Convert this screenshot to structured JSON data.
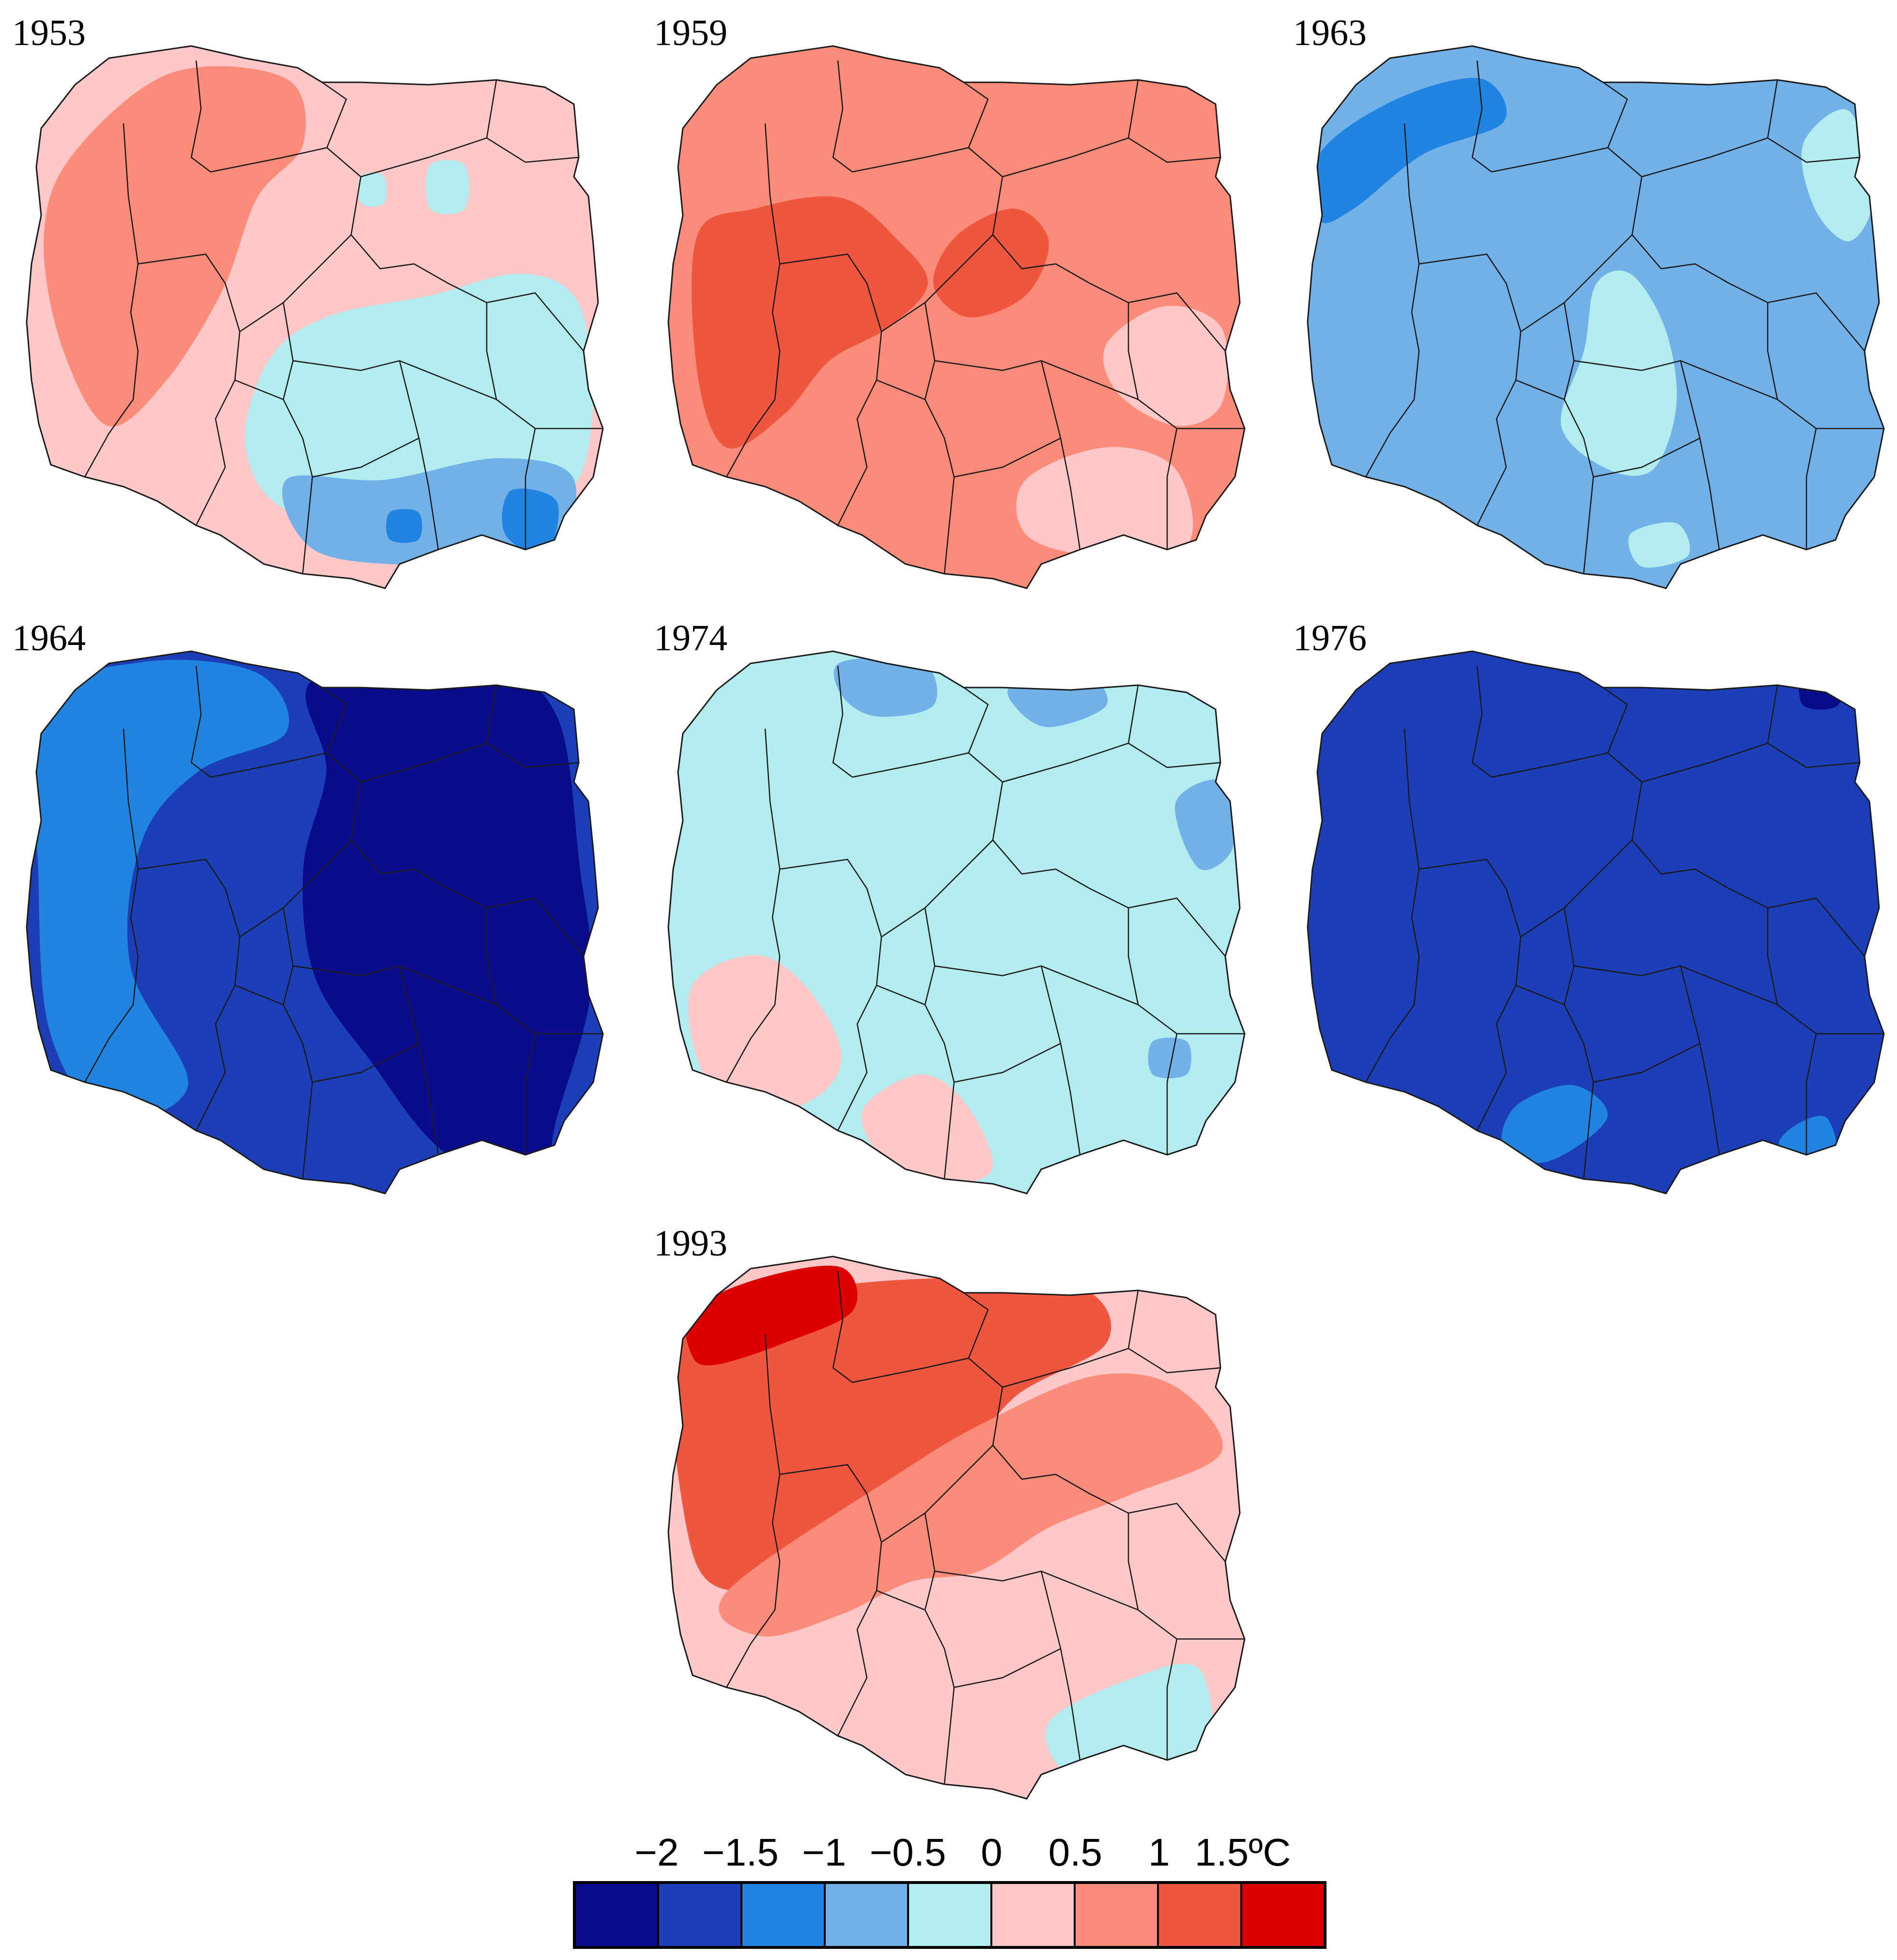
{
  "colors": {
    "m2": "#0a0a8c",
    "m15": "#1c3fb8",
    "m1": "#2184e0",
    "m05": "#72b1e8",
    "z": "#b3ecef",
    "p05": "#fdc8c7",
    "p1": "#fb8c79",
    "p15": "#ef5640",
    "p2": "#dc0000"
  },
  "panels": [
    {
      "year": "1953",
      "base": "p05",
      "blobs": [
        {
          "color": "p1",
          "pts": [
            [
              0.08,
              0.2
            ],
            [
              0.25,
              0.05
            ],
            [
              0.45,
              0.06
            ],
            [
              0.48,
              0.18
            ],
            [
              0.4,
              0.28
            ],
            [
              0.34,
              0.45
            ],
            [
              0.24,
              0.62
            ],
            [
              0.14,
              0.7
            ],
            [
              0.06,
              0.55
            ],
            [
              0.03,
              0.35
            ]
          ]
        },
        {
          "color": "z",
          "pts": [
            [
              0.42,
              0.58
            ],
            [
              0.52,
              0.5
            ],
            [
              0.7,
              0.46
            ],
            [
              0.86,
              0.42
            ],
            [
              0.96,
              0.48
            ],
            [
              0.98,
              0.7
            ],
            [
              0.92,
              0.84
            ],
            [
              0.7,
              0.88
            ],
            [
              0.46,
              0.86
            ],
            [
              0.38,
              0.74
            ]
          ]
        },
        {
          "color": "m05",
          "pts": [
            [
              0.45,
              0.8
            ],
            [
              0.62,
              0.8
            ],
            [
              0.82,
              0.76
            ],
            [
              0.95,
              0.8
            ],
            [
              0.9,
              0.97
            ],
            [
              0.7,
              0.96
            ],
            [
              0.5,
              0.93
            ]
          ]
        },
        {
          "color": "m1",
          "pts": [
            [
              0.84,
              0.82
            ],
            [
              0.92,
              0.84
            ],
            [
              0.9,
              0.94
            ],
            [
              0.83,
              0.9
            ]
          ]
        },
        {
          "color": "m1",
          "pts": [
            [
              0.63,
              0.86
            ],
            [
              0.68,
              0.86
            ],
            [
              0.68,
              0.91
            ],
            [
              0.63,
              0.91
            ]
          ]
        },
        {
          "color": "z",
          "pts": [
            [
              0.7,
              0.22
            ],
            [
              0.76,
              0.22
            ],
            [
              0.76,
              0.3
            ],
            [
              0.7,
              0.3
            ]
          ]
        },
        {
          "color": "z",
          "pts": [
            [
              0.58,
              0.24
            ],
            [
              0.62,
              0.24
            ],
            [
              0.62,
              0.29
            ],
            [
              0.58,
              0.29
            ]
          ]
        }
      ]
    },
    {
      "year": "1959",
      "base": "p1",
      "blobs": [
        {
          "color": "p15",
          "pts": [
            [
              0.05,
              0.35
            ],
            [
              0.15,
              0.3
            ],
            [
              0.3,
              0.28
            ],
            [
              0.4,
              0.36
            ],
            [
              0.45,
              0.44
            ],
            [
              0.38,
              0.52
            ],
            [
              0.28,
              0.58
            ],
            [
              0.2,
              0.68
            ],
            [
              0.1,
              0.74
            ],
            [
              0.05,
              0.6
            ]
          ]
        },
        {
          "color": "p15",
          "pts": [
            [
              0.5,
              0.35
            ],
            [
              0.6,
              0.3
            ],
            [
              0.66,
              0.36
            ],
            [
              0.62,
              0.46
            ],
            [
              0.52,
              0.5
            ],
            [
              0.46,
              0.44
            ]
          ]
        },
        {
          "color": "p05",
          "pts": [
            [
              0.76,
              0.55
            ],
            [
              0.86,
              0.48
            ],
            [
              0.96,
              0.52
            ],
            [
              0.96,
              0.66
            ],
            [
              0.88,
              0.7
            ],
            [
              0.78,
              0.64
            ]
          ]
        },
        {
          "color": "p05",
          "pts": [
            [
              0.62,
              0.8
            ],
            [
              0.76,
              0.74
            ],
            [
              0.88,
              0.78
            ],
            [
              0.9,
              0.92
            ],
            [
              0.74,
              0.94
            ],
            [
              0.62,
              0.9
            ]
          ]
        }
      ]
    },
    {
      "year": "1963",
      "base": "m05",
      "blobs": [
        {
          "color": "m1",
          "pts": [
            [
              0.02,
              0.2
            ],
            [
              0.15,
              0.1
            ],
            [
              0.3,
              0.06
            ],
            [
              0.34,
              0.14
            ],
            [
              0.2,
              0.2
            ],
            [
              0.08,
              0.3
            ],
            [
              0.02,
              0.32
            ]
          ]
        },
        {
          "color": "z",
          "pts": [
            [
              0.5,
              0.44
            ],
            [
              0.56,
              0.42
            ],
            [
              0.62,
              0.52
            ],
            [
              0.64,
              0.66
            ],
            [
              0.6,
              0.78
            ],
            [
              0.52,
              0.78
            ],
            [
              0.44,
              0.7
            ],
            [
              0.48,
              0.56
            ]
          ]
        },
        {
          "color": "z",
          "pts": [
            [
              0.86,
              0.18
            ],
            [
              0.94,
              0.12
            ],
            [
              0.98,
              0.28
            ],
            [
              0.94,
              0.36
            ],
            [
              0.88,
              0.3
            ]
          ]
        },
        {
          "color": "z",
          "pts": [
            [
              0.56,
              0.9
            ],
            [
              0.64,
              0.88
            ],
            [
              0.66,
              0.94
            ],
            [
              0.58,
              0.96
            ]
          ]
        }
      ]
    },
    {
      "year": "1964",
      "base": "m15",
      "blobs": [
        {
          "color": "m1",
          "pts": [
            [
              0.02,
              0.1
            ],
            [
              0.2,
              0.02
            ],
            [
              0.4,
              0.04
            ],
            [
              0.45,
              0.15
            ],
            [
              0.3,
              0.22
            ],
            [
              0.2,
              0.35
            ],
            [
              0.18,
              0.58
            ],
            [
              0.28,
              0.8
            ],
            [
              0.14,
              0.86
            ],
            [
              0.04,
              0.7
            ],
            [
              0.02,
              0.4
            ]
          ]
        },
        {
          "color": "m2",
          "pts": [
            [
              0.5,
              0.05
            ],
            [
              0.8,
              0.04
            ],
            [
              0.92,
              0.12
            ],
            [
              0.96,
              0.4
            ],
            [
              0.98,
              0.62
            ],
            [
              0.92,
              0.86
            ],
            [
              0.88,
              1.0
            ],
            [
              0.72,
              0.92
            ],
            [
              0.6,
              0.76
            ],
            [
              0.5,
              0.6
            ],
            [
              0.48,
              0.4
            ],
            [
              0.52,
              0.22
            ]
          ]
        }
      ]
    },
    {
      "year": "1974",
      "base": "z",
      "blobs": [
        {
          "color": "p05",
          "pts": [
            [
              0.04,
              0.62
            ],
            [
              0.15,
              0.56
            ],
            [
              0.24,
              0.62
            ],
            [
              0.3,
              0.74
            ],
            [
              0.26,
              0.82
            ],
            [
              0.14,
              0.86
            ],
            [
              0.06,
              0.78
            ]
          ]
        },
        {
          "color": "p05",
          "pts": [
            [
              0.34,
              0.84
            ],
            [
              0.44,
              0.78
            ],
            [
              0.52,
              0.84
            ],
            [
              0.56,
              0.96
            ],
            [
              0.44,
              0.98
            ],
            [
              0.36,
              0.92
            ]
          ]
        },
        {
          "color": "m05",
          "pts": [
            [
              0.3,
              0.02
            ],
            [
              0.44,
              0.02
            ],
            [
              0.46,
              0.1
            ],
            [
              0.36,
              0.12
            ],
            [
              0.3,
              0.08
            ]
          ]
        },
        {
          "color": "m05",
          "pts": [
            [
              0.6,
              0.06
            ],
            [
              0.72,
              0.04
            ],
            [
              0.76,
              0.1
            ],
            [
              0.66,
              0.14
            ],
            [
              0.6,
              0.1
            ]
          ]
        },
        {
          "color": "m05",
          "pts": [
            [
              0.88,
              0.28
            ],
            [
              0.96,
              0.24
            ],
            [
              0.98,
              0.36
            ],
            [
              0.92,
              0.4
            ]
          ]
        },
        {
          "color": "m05",
          "pts": [
            [
              0.84,
              0.72
            ],
            [
              0.9,
              0.72
            ],
            [
              0.9,
              0.78
            ],
            [
              0.84,
              0.78
            ]
          ]
        }
      ]
    },
    {
      "year": "1976",
      "base": "m15",
      "blobs": [
        {
          "color": "m1",
          "pts": [
            [
              0.36,
              0.84
            ],
            [
              0.46,
              0.8
            ],
            [
              0.52,
              0.86
            ],
            [
              0.42,
              0.94
            ],
            [
              0.34,
              0.92
            ]
          ]
        },
        {
          "color": "m1",
          "pts": [
            [
              0.82,
              0.9
            ],
            [
              0.9,
              0.86
            ],
            [
              0.92,
              0.98
            ],
            [
              0.84,
              0.98
            ]
          ]
        },
        {
          "color": "m2",
          "pts": [
            [
              0.86,
              0.04
            ],
            [
              0.92,
              0.04
            ],
            [
              0.92,
              0.1
            ],
            [
              0.86,
              0.1
            ]
          ]
        }
      ]
    },
    {
      "year": "1993",
      "base": "p05",
      "blobs": [
        {
          "color": "p15",
          "pts": [
            [
              0.02,
              0.12
            ],
            [
              0.25,
              0.06
            ],
            [
              0.5,
              0.04
            ],
            [
              0.72,
              0.06
            ],
            [
              0.76,
              0.16
            ],
            [
              0.6,
              0.26
            ],
            [
              0.5,
              0.4
            ],
            [
              0.4,
              0.5
            ],
            [
              0.26,
              0.58
            ],
            [
              0.14,
              0.62
            ],
            [
              0.04,
              0.54
            ]
          ]
        },
        {
          "color": "p1",
          "pts": [
            [
              0.4,
              0.4
            ],
            [
              0.56,
              0.3
            ],
            [
              0.74,
              0.22
            ],
            [
              0.88,
              0.24
            ],
            [
              0.96,
              0.36
            ],
            [
              0.8,
              0.44
            ],
            [
              0.66,
              0.5
            ],
            [
              0.54,
              0.58
            ],
            [
              0.42,
              0.6
            ],
            [
              0.3,
              0.66
            ],
            [
              0.16,
              0.7
            ],
            [
              0.1,
              0.62
            ]
          ]
        },
        {
          "color": "p2",
          "pts": [
            [
              0.04,
              0.1
            ],
            [
              0.16,
              0.04
            ],
            [
              0.3,
              0.02
            ],
            [
              0.32,
              0.1
            ],
            [
              0.2,
              0.16
            ],
            [
              0.08,
              0.2
            ],
            [
              0.04,
              0.18
            ]
          ]
        },
        {
          "color": "z",
          "pts": [
            [
              0.66,
              0.86
            ],
            [
              0.8,
              0.78
            ],
            [
              0.92,
              0.76
            ],
            [
              0.94,
              0.92
            ],
            [
              0.86,
              0.98
            ],
            [
              0.7,
              0.96
            ]
          ]
        }
      ]
    }
  ],
  "legend": {
    "ticks": [
      "−2",
      "−1.5",
      "−1",
      "−0.5",
      "0",
      "0.5",
      "1",
      "1.5ºC"
    ],
    "swatches": [
      "m2",
      "m15",
      "m1",
      "m05",
      "z",
      "p05",
      "p1",
      "p15",
      "p2"
    ]
  }
}
